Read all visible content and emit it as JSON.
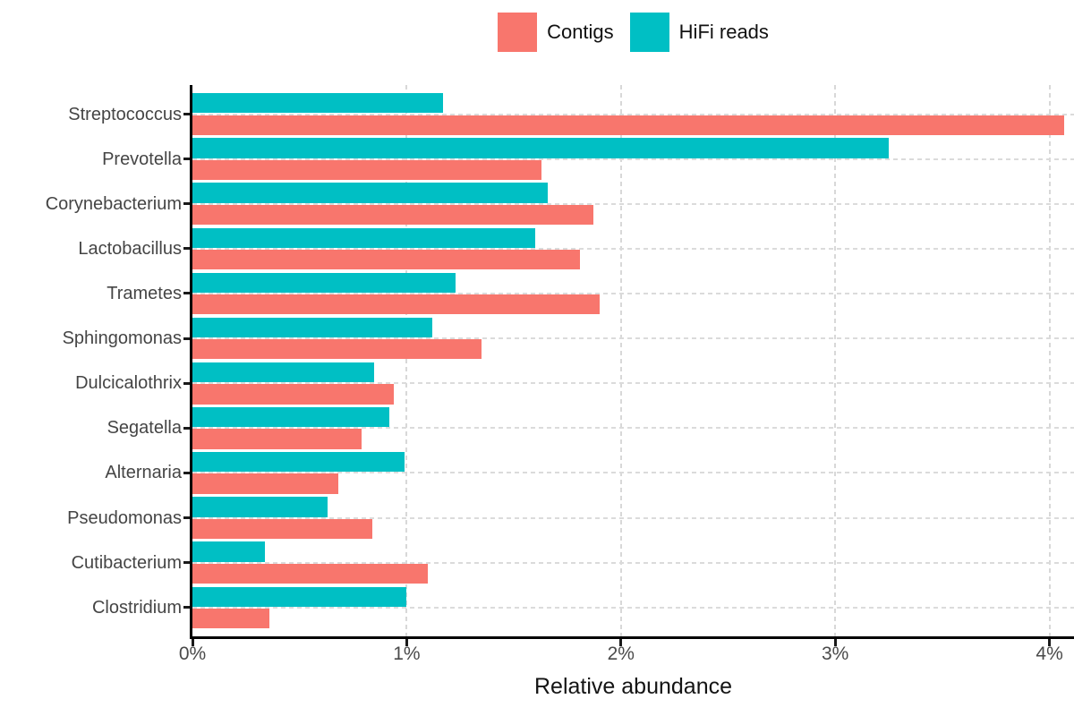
{
  "chart_data": {
    "type": "bar",
    "orientation": "horizontal",
    "title": "",
    "xlabel": "Relative abundance",
    "ylabel": "",
    "categories": [
      "Streptococcus",
      "Prevotella",
      "Corynebacterium",
      "Lactobacillus",
      "Trametes",
      "Sphingomonas",
      "Dulcicalothrix",
      "Segatella",
      "Alternaria",
      "Pseudomonas",
      "Cutibacterium",
      "Clostridium"
    ],
    "series": [
      {
        "name": "Contigs",
        "color": "#F8766D",
        "values": [
          4.07,
          1.63,
          1.87,
          1.81,
          1.9,
          1.35,
          0.94,
          0.79,
          0.68,
          0.84,
          1.1,
          0.36
        ]
      },
      {
        "name": "HiFi reads",
        "color": "#00BFC4",
        "values": [
          1.17,
          3.25,
          1.66,
          1.6,
          1.23,
          1.12,
          0.85,
          0.92,
          0.99,
          0.63,
          0.34,
          1.0
        ]
      }
    ],
    "bar_order_within_group_top_to_bottom": [
      "HiFi reads",
      "Contigs"
    ],
    "x_ticks": [
      {
        "value": 0,
        "label": "0%"
      },
      {
        "value": 1,
        "label": "1%"
      },
      {
        "value": 2,
        "label": "2%"
      },
      {
        "value": 3,
        "label": "3%"
      },
      {
        "value": 4,
        "label": "4%"
      }
    ],
    "xlim": [
      0,
      4.11
    ],
    "grid": {
      "vertical": "dashed light gray at 1%,2%,3%,4%",
      "horizontal": "dashed light gray at category centers"
    },
    "legend_position": "top-center"
  },
  "legend": {
    "items": [
      {
        "label": "Contigs",
        "color": "#F8766D"
      },
      {
        "label": "HiFi reads",
        "color": "#00BFC4"
      }
    ]
  },
  "colors": {
    "contigs": "#F8766D",
    "hifi_reads": "#00BFC4",
    "axis_line": "#000000",
    "gridline": "#d9d9d9",
    "tick_label": "#4a4a4a",
    "category_label": "#454545",
    "axis_title": "#141414",
    "background": "#ffffff"
  }
}
